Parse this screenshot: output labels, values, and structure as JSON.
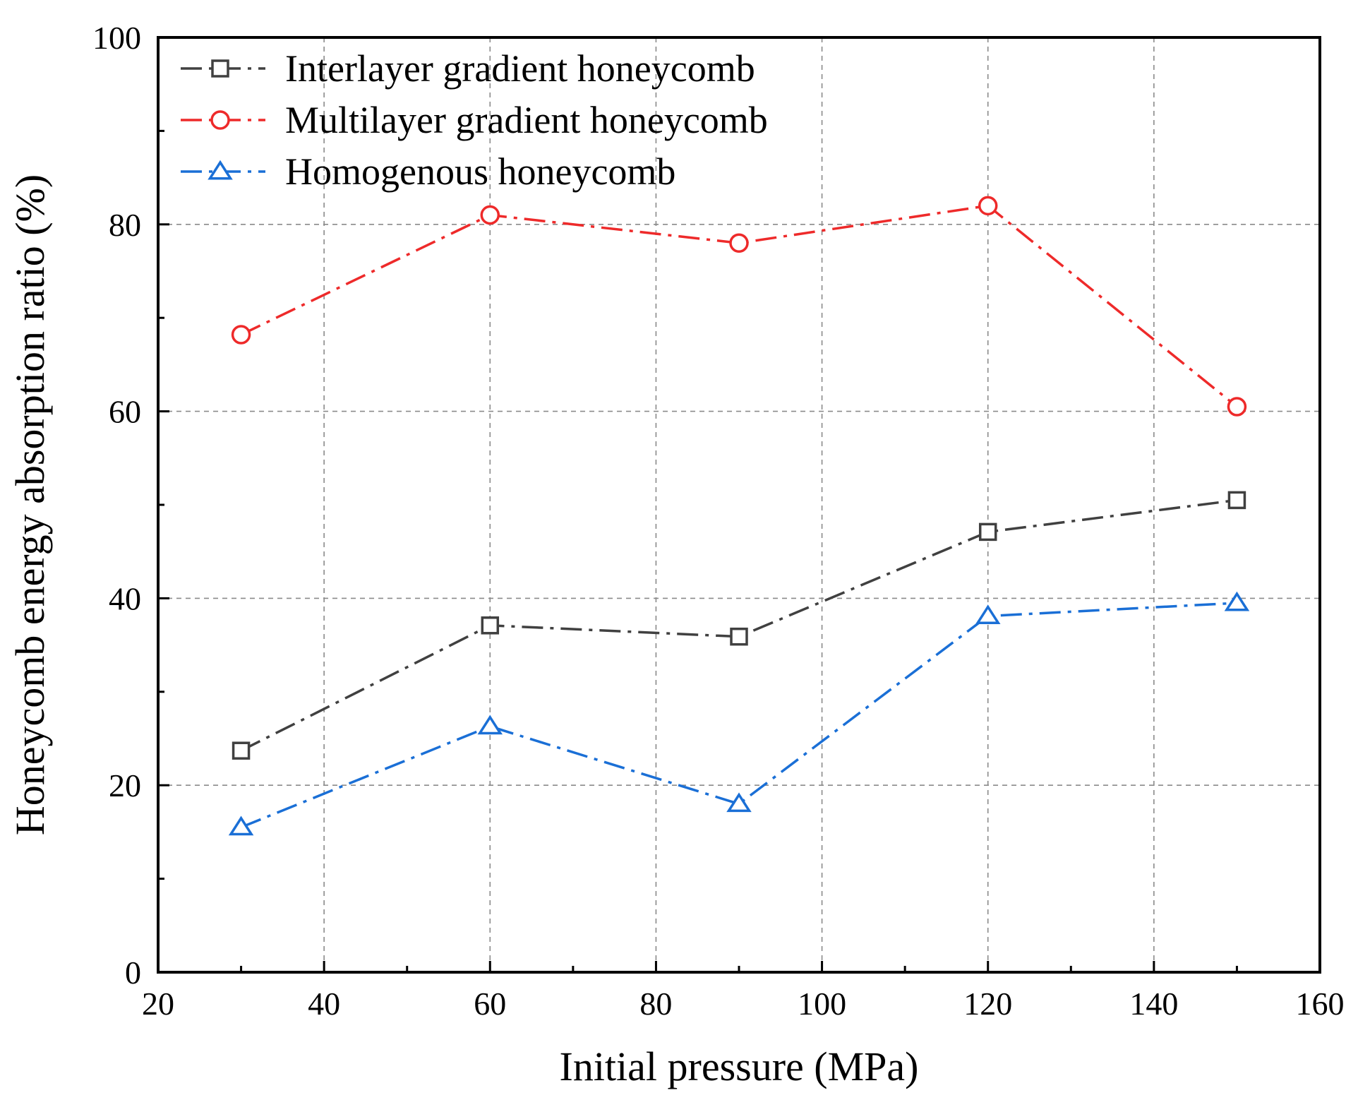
{
  "chart_data": {
    "type": "line",
    "title": "",
    "xlabel": "Initial pressure (MPa)",
    "ylabel": "Honeycomb energy absorption ratio (%)",
    "xlim": [
      20,
      160
    ],
    "ylim": [
      0,
      100
    ],
    "x_ticks": [
      20,
      40,
      60,
      80,
      100,
      120,
      140,
      160
    ],
    "y_ticks": [
      0,
      20,
      40,
      60,
      80,
      100
    ],
    "x_minor_step": 10,
    "y_minor_step": 10,
    "grid": true,
    "legend_position": "top-left",
    "x": [
      30,
      60,
      90,
      120,
      150
    ],
    "series": [
      {
        "name": "Interlayer gradient honeycomb",
        "values": [
          23.7,
          37.1,
          35.9,
          47.1,
          50.5
        ],
        "color": "#404040",
        "marker": "square"
      },
      {
        "name": "Multilayer gradient honeycomb",
        "values": [
          68.2,
          81.0,
          78.0,
          82.0,
          60.5
        ],
        "color": "#ee2a2a",
        "marker": "circle"
      },
      {
        "name": "Homogenous honeycomb",
        "values": [
          15.5,
          26.3,
          18.0,
          38.1,
          39.5
        ],
        "color": "#1a6fd6",
        "marker": "triangle"
      }
    ]
  }
}
